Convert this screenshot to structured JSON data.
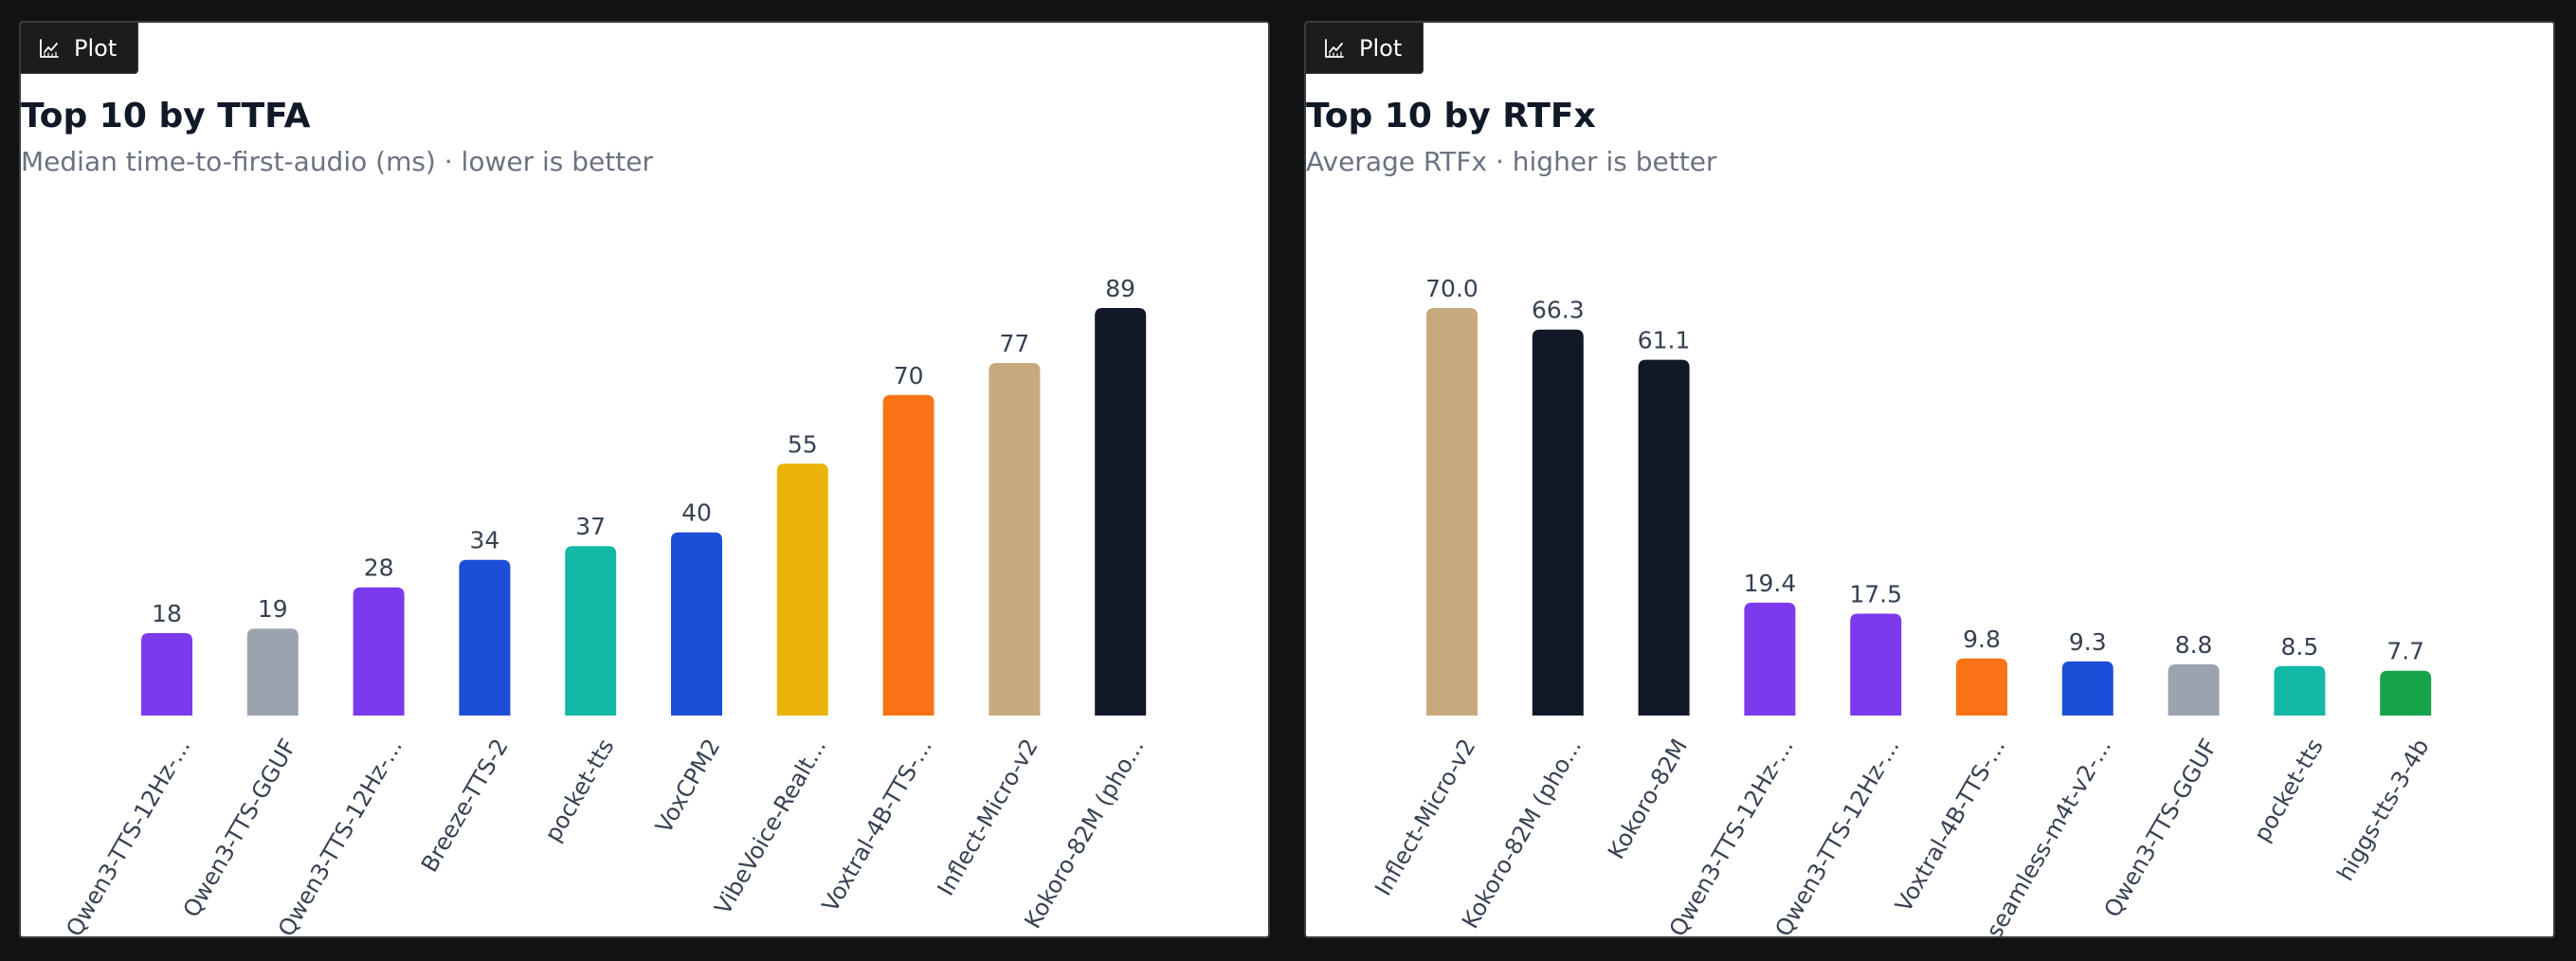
{
  "plot_button_label": "Plot",
  "chart_data": [
    {
      "type": "bar",
      "title": "Top 10 by TTFA",
      "subtitle": "Median time-to-first-audio (ms) · lower is better",
      "categories": [
        "Qwen3-TTS-12Hz-...",
        "Qwen3-TTS-GGUF",
        "Qwen3-TTS-12Hz-...",
        "Breeze-TTS-2",
        "pocket-tts",
        "VoxCPM2",
        "VibeVoice-Realt...",
        "Voxtral-4B-TTS-...",
        "Inflect-Micro-v2",
        "Kokoro-82M (pho..."
      ],
      "values": [
        18,
        19,
        28,
        34,
        37,
        40,
        55,
        70,
        77,
        89
      ],
      "value_labels": [
        "18",
        "19",
        "28",
        "34",
        "37",
        "40",
        "55",
        "70",
        "77",
        "89"
      ],
      "colors": [
        "#7c3aed",
        "#9ca3af",
        "#7c3aed",
        "#1d4ed8",
        "#14b8a6",
        "#1d4ed8",
        "#eab308",
        "#f97316",
        "#c8a97e",
        "#111827"
      ],
      "ylim": [
        0,
        89
      ],
      "grid": false,
      "xlabel": "",
      "ylabel": ""
    },
    {
      "type": "bar",
      "title": "Top 10 by RTFx",
      "subtitle": "Average RTFx · higher is better",
      "categories": [
        "Inflect-Micro-v2",
        "Kokoro-82M (pho...",
        "Kokoro-82M",
        "Qwen3-TTS-12Hz-...",
        "Qwen3-TTS-12Hz-...",
        "Voxtral-4B-TTS-...",
        "seamless-m4t-v2-...",
        "Qwen3-TTS-GGUF",
        "pocket-tts",
        "higgs-tts-3-4b"
      ],
      "values": [
        70.0,
        66.3,
        61.1,
        19.4,
        17.5,
        9.8,
        9.3,
        8.8,
        8.5,
        7.7
      ],
      "value_labels": [
        "70.0",
        "66.3",
        "61.1",
        "19.4",
        "17.5",
        "9.8",
        "9.3",
        "8.8",
        "8.5",
        "7.7"
      ],
      "colors": [
        "#c8a97e",
        "#111827",
        "#111827",
        "#7c3aed",
        "#7c3aed",
        "#f97316",
        "#1d4ed8",
        "#9ca3af",
        "#14b8a6",
        "#16a34a"
      ],
      "ylim": [
        0,
        70
      ],
      "grid": false,
      "xlabel": "",
      "ylabel": ""
    }
  ]
}
